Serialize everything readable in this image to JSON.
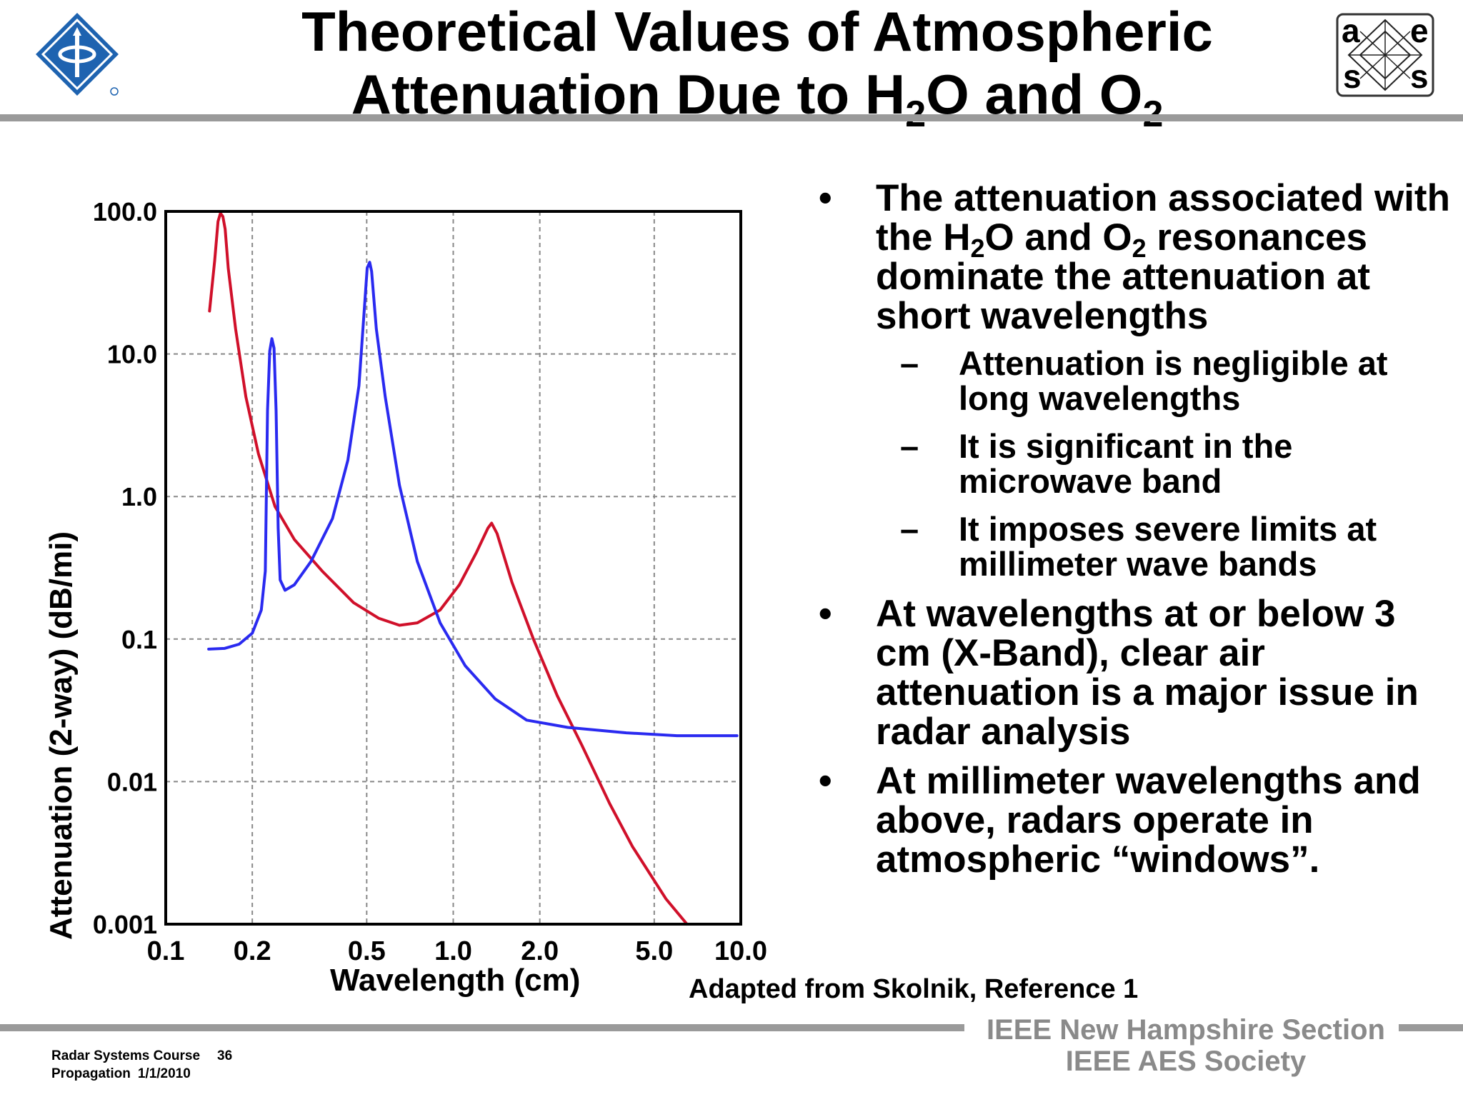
{
  "header": {
    "title_line1": "Theoretical Values of Atmospheric",
    "title_line2_pre": "Attenuation Due to H",
    "title_sub1": "2",
    "title_line2_mid": "O and O",
    "title_sub2": "2"
  },
  "aes_logo": {
    "letters": [
      "a",
      "e",
      "s",
      "s"
    ]
  },
  "chart_data": {
    "type": "line",
    "title": "",
    "xlabel": "Wavelength (cm)",
    "ylabel": "Attenuation (2-way) (dB/mi)",
    "x_scale": "log",
    "y_scale": "log",
    "xlim": [
      0.1,
      10.0
    ],
    "ylim": [
      0.001,
      100.0
    ],
    "grid": true,
    "x_ticks": [
      0.1,
      0.2,
      0.5,
      1.0,
      2.0,
      5.0,
      10.0
    ],
    "x_tick_labels": [
      "0.1",
      "0.2",
      "0.5",
      "1.0",
      "2.0",
      "5.0",
      "10.0"
    ],
    "y_ticks": [
      0.001,
      0.01,
      0.1,
      1.0,
      10.0,
      100.0
    ],
    "y_tick_labels": [
      "0.001",
      "0.01",
      "0.1",
      "1.0",
      "10.0",
      "100.0"
    ],
    "series": [
      {
        "color": "#d0102a",
        "points": [
          [
            0.142,
            20
          ],
          [
            0.148,
            45
          ],
          [
            0.152,
            85
          ],
          [
            0.155,
            97
          ],
          [
            0.158,
            92
          ],
          [
            0.161,
            75
          ],
          [
            0.165,
            40
          ],
          [
            0.175,
            15
          ],
          [
            0.19,
            5
          ],
          [
            0.21,
            2
          ],
          [
            0.24,
            0.85
          ],
          [
            0.28,
            0.5
          ],
          [
            0.35,
            0.3
          ],
          [
            0.45,
            0.18
          ],
          [
            0.55,
            0.14
          ],
          [
            0.65,
            0.125
          ],
          [
            0.75,
            0.13
          ],
          [
            0.9,
            0.16
          ],
          [
            1.05,
            0.24
          ],
          [
            1.2,
            0.4
          ],
          [
            1.32,
            0.6
          ],
          [
            1.36,
            0.65
          ],
          [
            1.42,
            0.55
          ],
          [
            1.6,
            0.25
          ],
          [
            1.9,
            0.1
          ],
          [
            2.3,
            0.04
          ],
          [
            2.8,
            0.018
          ],
          [
            3.5,
            0.007
          ],
          [
            4.2,
            0.0035
          ],
          [
            5.5,
            0.0015
          ],
          [
            6.5,
            0.001
          ]
        ]
      },
      {
        "color": "#2a2af0",
        "points": [
          [
            0.141,
            0.085
          ],
          [
            0.16,
            0.086
          ],
          [
            0.18,
            0.092
          ],
          [
            0.2,
            0.11
          ],
          [
            0.215,
            0.16
          ],
          [
            0.222,
            0.3
          ],
          [
            0.226,
            4
          ],
          [
            0.23,
            10.5
          ],
          [
            0.234,
            12.8
          ],
          [
            0.238,
            11
          ],
          [
            0.242,
            4
          ],
          [
            0.246,
            0.6
          ],
          [
            0.25,
            0.26
          ],
          [
            0.26,
            0.22
          ],
          [
            0.28,
            0.24
          ],
          [
            0.32,
            0.35
          ],
          [
            0.38,
            0.7
          ],
          [
            0.43,
            1.8
          ],
          [
            0.47,
            6
          ],
          [
            0.49,
            20
          ],
          [
            0.502,
            40
          ],
          [
            0.512,
            44
          ],
          [
            0.52,
            38
          ],
          [
            0.54,
            15
          ],
          [
            0.58,
            5
          ],
          [
            0.65,
            1.2
          ],
          [
            0.75,
            0.35
          ],
          [
            0.9,
            0.13
          ],
          [
            1.1,
            0.065
          ],
          [
            1.4,
            0.038
          ],
          [
            1.8,
            0.027
          ],
          [
            2.5,
            0.024
          ],
          [
            4,
            0.022
          ],
          [
            6,
            0.021
          ],
          [
            9.7,
            0.021
          ]
        ]
      }
    ]
  },
  "bullets": [
    {
      "symbol": "•",
      "p1": "The attenuation associated with the H",
      "s1": "2",
      "p2": "O and O",
      "s2": "2",
      "p3": " resonances dominate the attenuation at short wavelengths",
      "subs": [
        {
          "symbol": "–",
          "text": "Attenuation is negligible at long wavelengths"
        },
        {
          "symbol": "–",
          "text": "It is significant in the microwave band"
        },
        {
          "symbol": "–",
          "text": "It imposes severe limits at millimeter wave bands"
        }
      ]
    },
    {
      "symbol": "•",
      "text": "At wavelengths at or below 3 cm (X-Band), clear air attenuation is a major issue in radar analysis"
    },
    {
      "symbol": "•",
      "text": "At millimeter wavelengths and above, radars operate in atmospheric “windows”."
    }
  ],
  "source_note": "Adapted from Skolnik, Reference 1",
  "footer": {
    "course": "Radar Systems Course",
    "page": "36",
    "topic": "Propagation",
    "date": "1/1/2010",
    "org_line1": "IEEE New Hampshire Section",
    "org_line2": "IEEE AES Society"
  }
}
